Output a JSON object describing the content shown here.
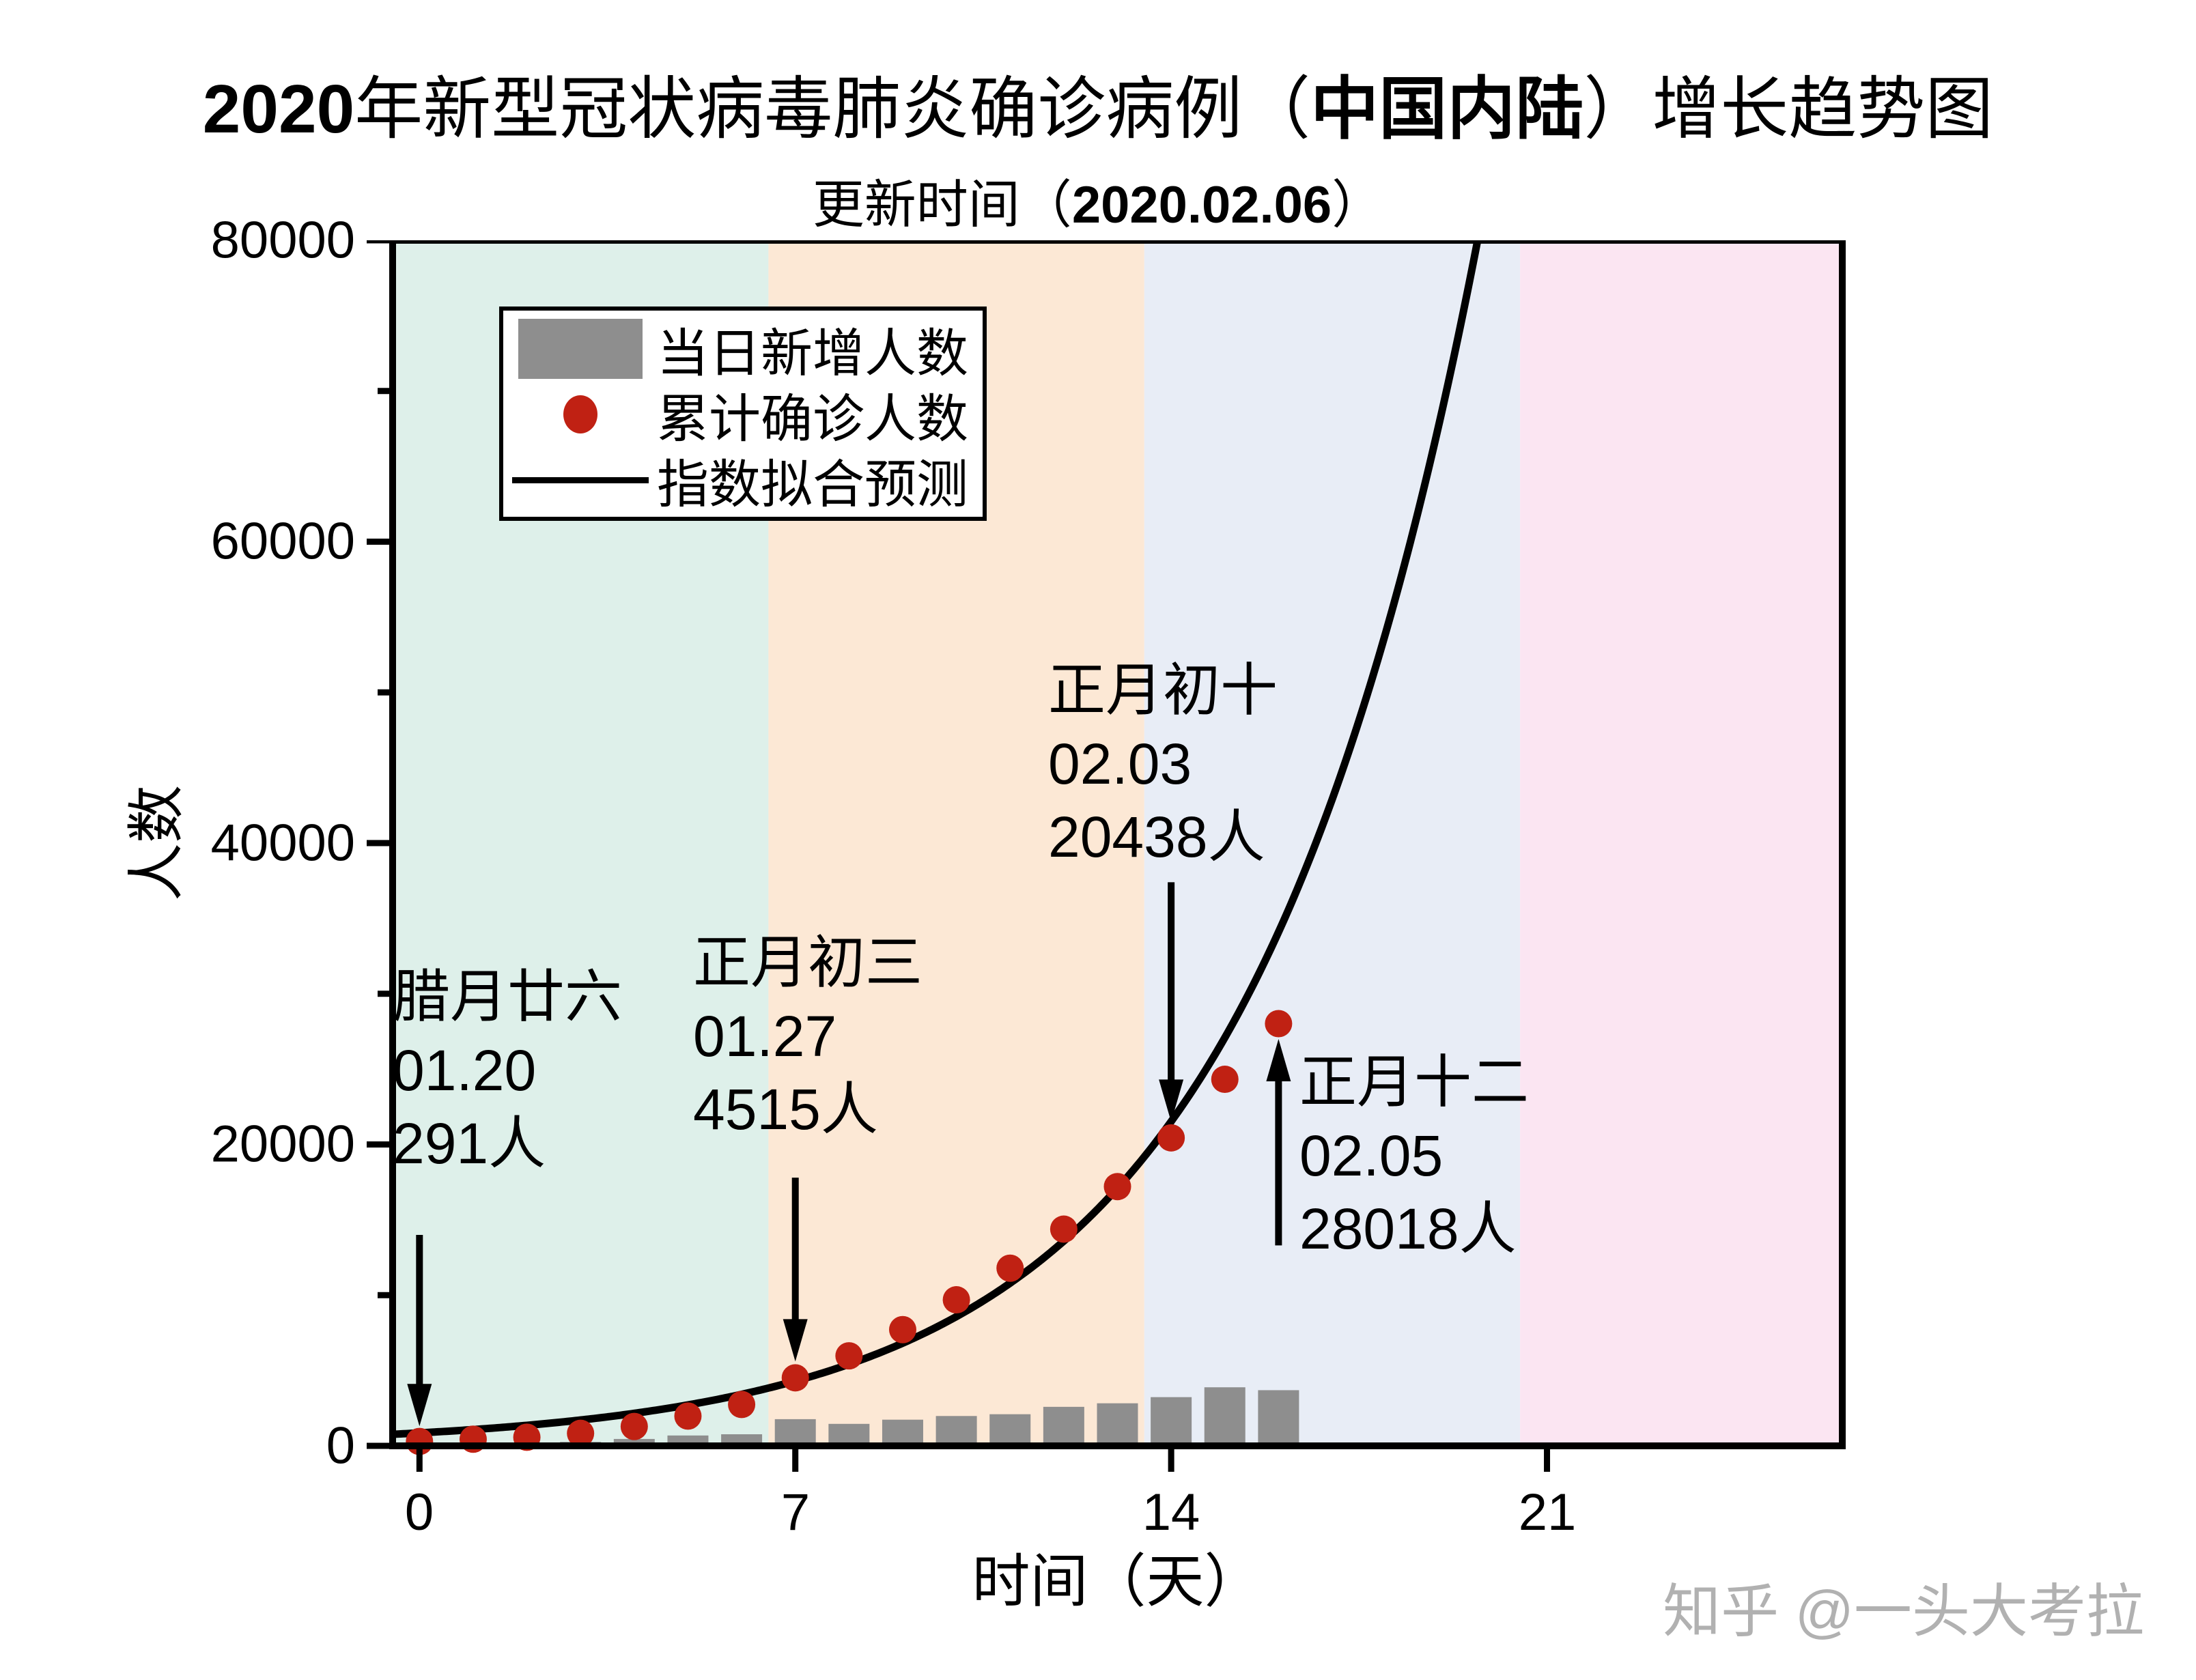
{
  "title": {
    "num": "2020",
    "pre": "年新型冠状病毒肺炎确诊病例（",
    "em": "中国内陆",
    "post": "）增长趋势图"
  },
  "subtitle": {
    "pre": "更新时间（",
    "em": "2020.02.06",
    "post": "）"
  },
  "axes": {
    "y_label": "人数",
    "x_label": "时间（天）",
    "y_tick_labels": [
      "80000",
      "60000",
      "40000",
      "20000",
      "0"
    ],
    "x_tick_labels": [
      "0",
      "7",
      "14",
      "21"
    ]
  },
  "legend": {
    "items": [
      {
        "kind": "bar",
        "label": "当日新增人数"
      },
      {
        "kind": "dot",
        "label": "累计确诊人数"
      },
      {
        "kind": "line",
        "label": "指数拟合预测"
      }
    ]
  },
  "watermark": "知乎 @一头大考拉",
  "colors": {
    "bar": "#8e8e8e",
    "dot": "#c02113",
    "fit_line": "#000000",
    "frame": "#000000",
    "bands": [
      "#def0ea",
      "#fce8d5",
      "#e8edf6",
      "#fbe5f2"
    ],
    "watermark": "#b1b1b1"
  },
  "chart_data": {
    "type": "combo",
    "title": "2020年新型冠状病毒肺炎确诊病例（中国内陆）增长趋势图",
    "subtitle": "更新时间（2020.02.06）",
    "xlabel": "时间（天）",
    "ylabel": "人数",
    "xlim": [
      -0.5,
      26.5
    ],
    "ylim": [
      0,
      80000
    ],
    "x_ticks": [
      0,
      7,
      14,
      21
    ],
    "y_ticks": [
      0,
      20000,
      40000,
      60000,
      80000
    ],
    "y_minor_step": 10000,
    "grid": false,
    "legend_position": "top-left",
    "x": [
      0,
      1,
      2,
      3,
      4,
      5,
      6,
      7,
      8,
      9,
      10,
      11,
      12,
      13,
      14,
      15,
      16
    ],
    "series": [
      {
        "name": "当日新增人数",
        "type": "bar",
        "color": "#8e8e8e",
        "values": [
          77,
          149,
          131,
          259,
          457,
          688,
          769,
          1771,
          1459,
          1737,
          1981,
          2099,
          2589,
          2825,
          3233,
          3886,
          3694
        ]
      },
      {
        "name": "累计确诊人数",
        "type": "scatter",
        "color": "#c02113",
        "values": [
          291,
          440,
          571,
          830,
          1287,
          1975,
          2744,
          4515,
          5974,
          7711,
          9692,
          11791,
          14380,
          17205,
          20438,
          24324,
          28018
        ]
      },
      {
        "name": "指数拟合预测",
        "type": "line",
        "color": "#000000",
        "fit": {
          "A": 860,
          "b": 0.23,
          "t_start": -0.5
        }
      }
    ],
    "bands": [
      {
        "from": -0.5,
        "to": 6.5,
        "color": "#def0ea"
      },
      {
        "from": 6.5,
        "to": 13.5,
        "color": "#fce8d5"
      },
      {
        "from": 13.5,
        "to": 20.5,
        "color": "#e8edf6"
      },
      {
        "from": 20.5,
        "to": 26.5,
        "color": "#fbe5f2"
      }
    ],
    "annotations": [
      {
        "lunar": "腊月廿六",
        "date": "01.20",
        "count": "291人",
        "arrow": {
          "day": 0,
          "from": 14000,
          "to": 1300,
          "dir": "down"
        }
      },
      {
        "lunar": "正月初三",
        "date": "01.27",
        "count": "4515人",
        "arrow": {
          "day": 7,
          "from": 17800,
          "to": 5600,
          "dir": "down"
        }
      },
      {
        "lunar": "正月初十",
        "date": "02.03",
        "count": "20438人",
        "arrow": {
          "day": 14,
          "from": 37400,
          "to": 21500,
          "dir": "down"
        }
      },
      {
        "lunar": "正月十二",
        "date": "02.05",
        "count": "28018人",
        "arrow": {
          "day": 16,
          "from": 13300,
          "to": 27000,
          "dir": "up"
        }
      }
    ]
  }
}
